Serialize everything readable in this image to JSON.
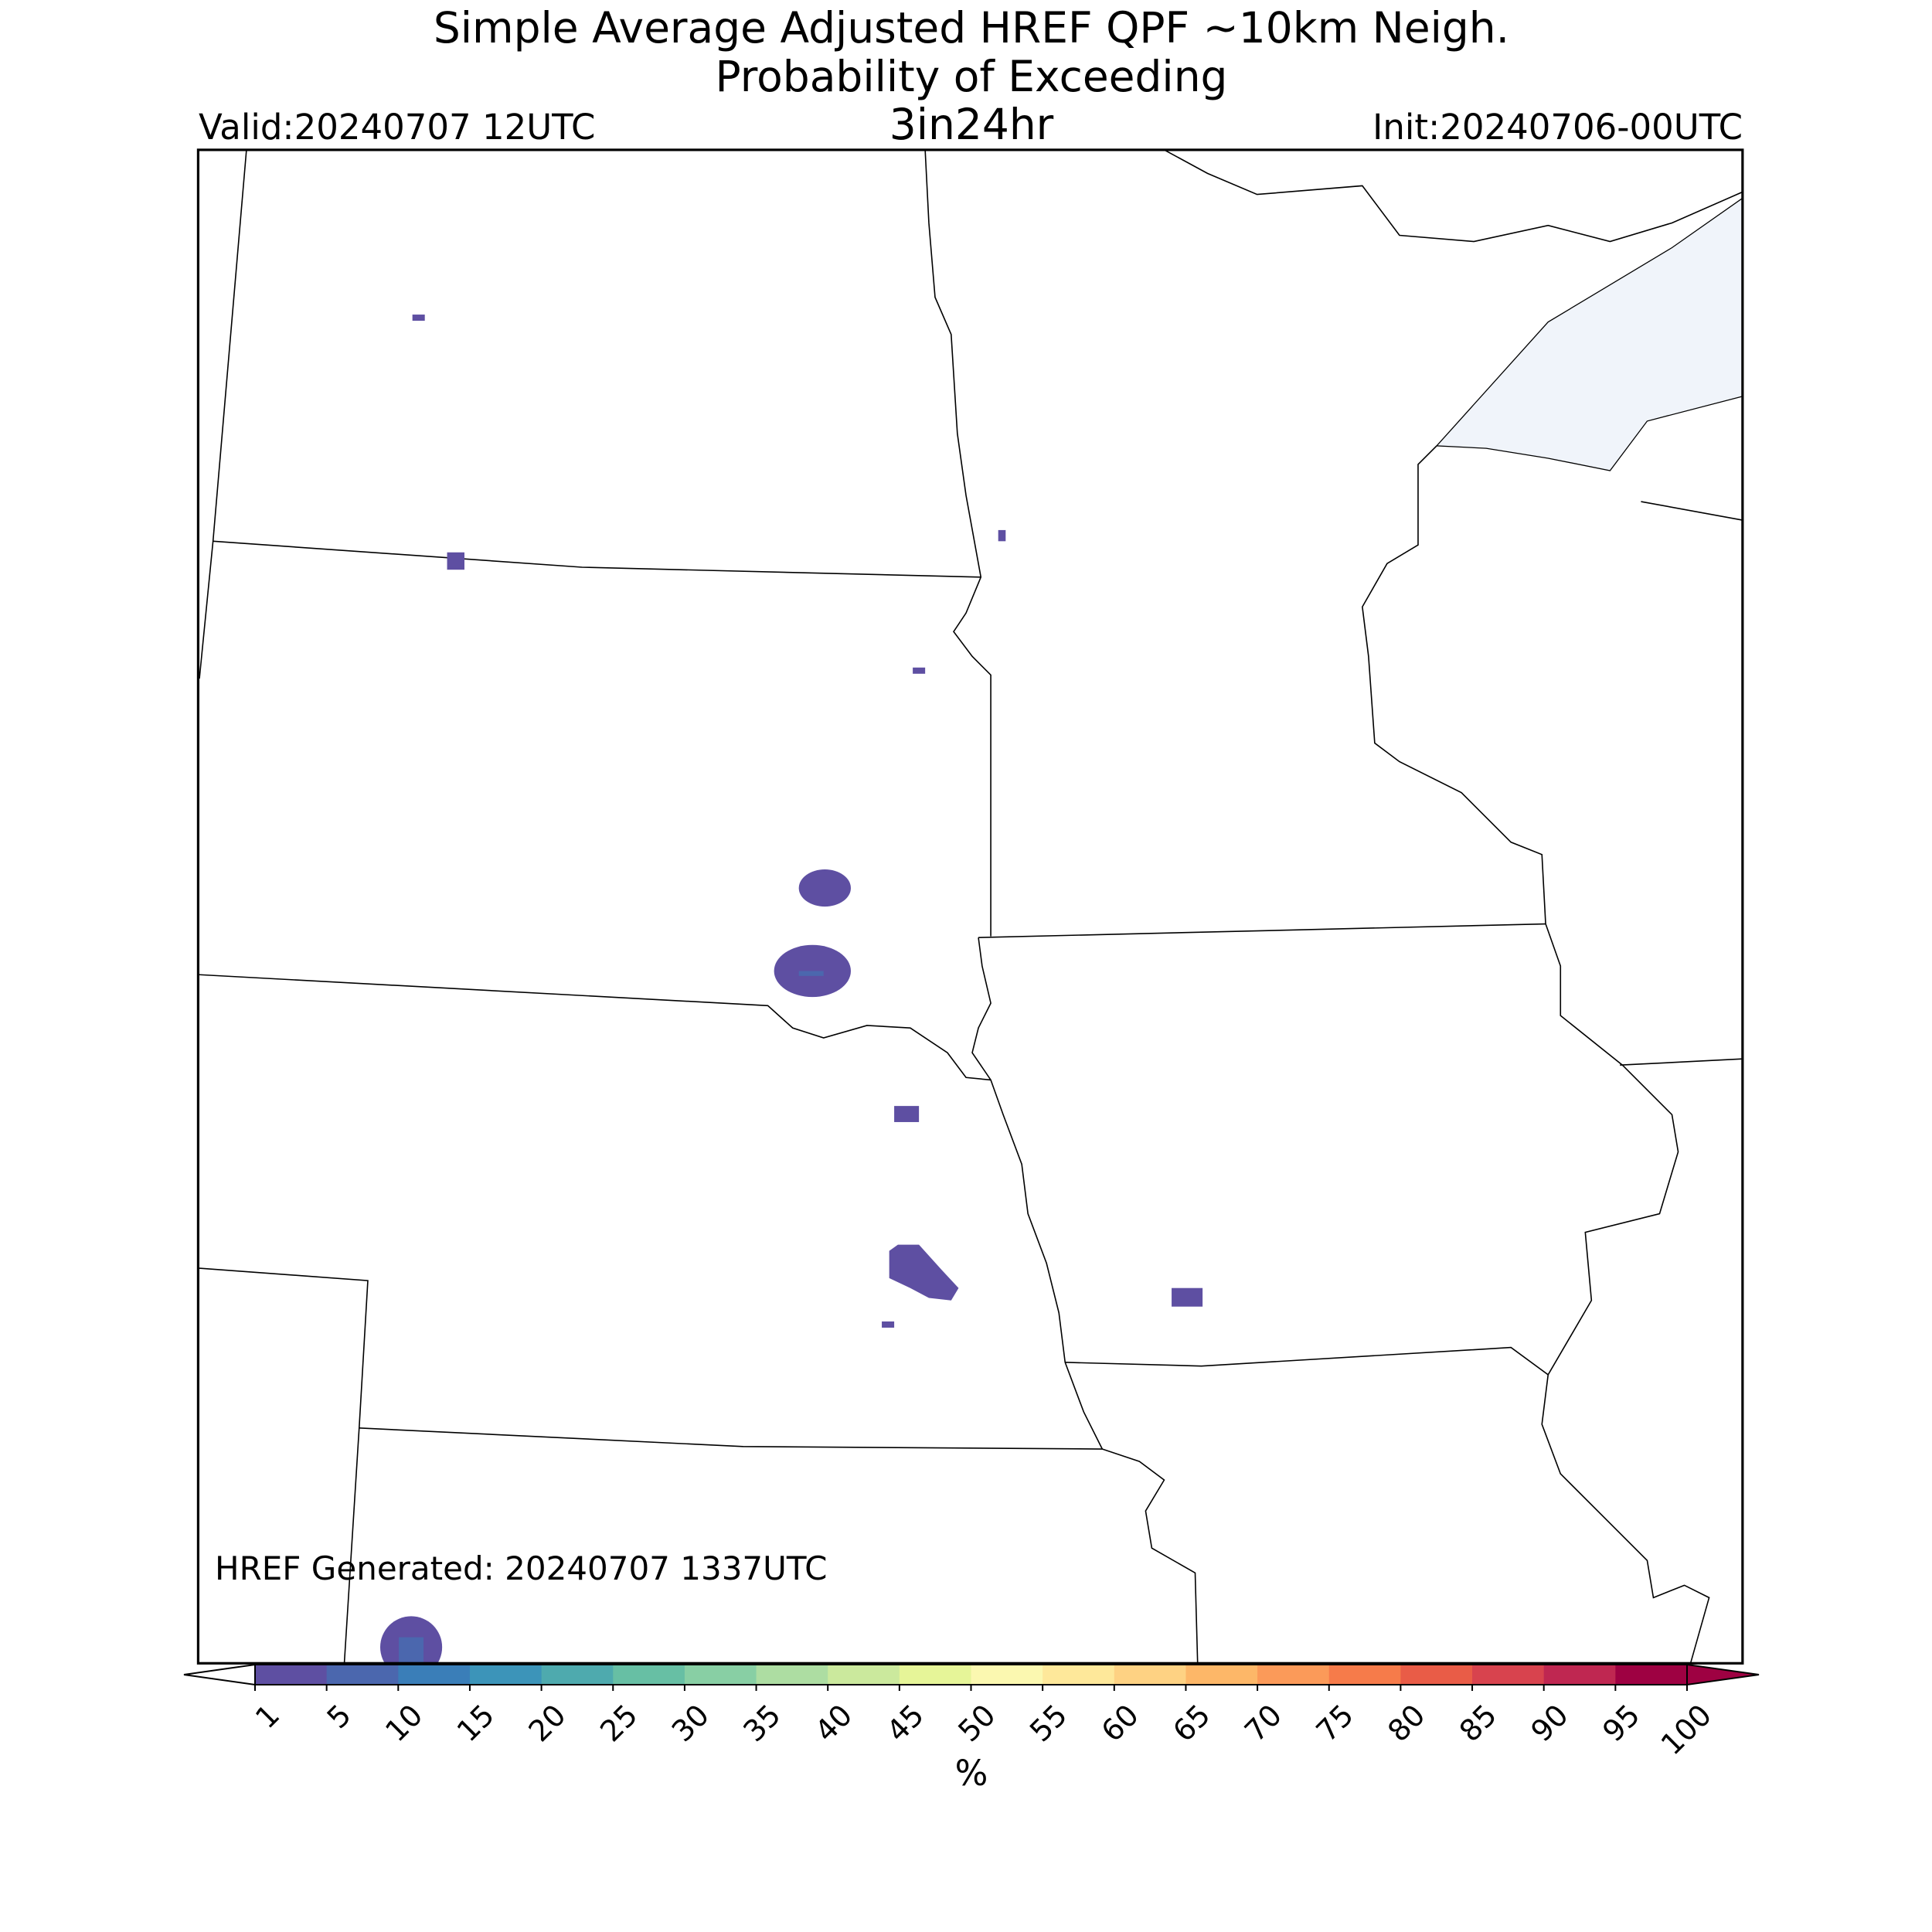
{
  "header": {
    "title_line1": "Simple Average Adjusted HREF QPF ~10km Neigh.",
    "title_line2": "Probability of Exceeding",
    "threshold": "3in24hr",
    "valid": "Valid:20240707 12UTC",
    "init": "Init:20240706-00UTC"
  },
  "map": {
    "generated": "HREF Generated: 20240707 1337UTC"
  },
  "colorbar": {
    "ticks": [
      1,
      5,
      10,
      15,
      20,
      25,
      30,
      35,
      40,
      45,
      50,
      55,
      60,
      65,
      70,
      75,
      80,
      85,
      90,
      95,
      100
    ],
    "colors": [
      "#5e4fa2",
      "#4b67ae",
      "#3a7eb8",
      "#3c94b9",
      "#4eaaae",
      "#67bfa4",
      "#88cfa4",
      "#addda2",
      "#cbe99d",
      "#e6f598",
      "#fbf8b0",
      "#fee89a",
      "#fed283",
      "#fdb768",
      "#fb9a59",
      "#f67b4a",
      "#e95c47",
      "#d8434e",
      "#bf2751",
      "#9e0142"
    ],
    "label": "%"
  }
}
